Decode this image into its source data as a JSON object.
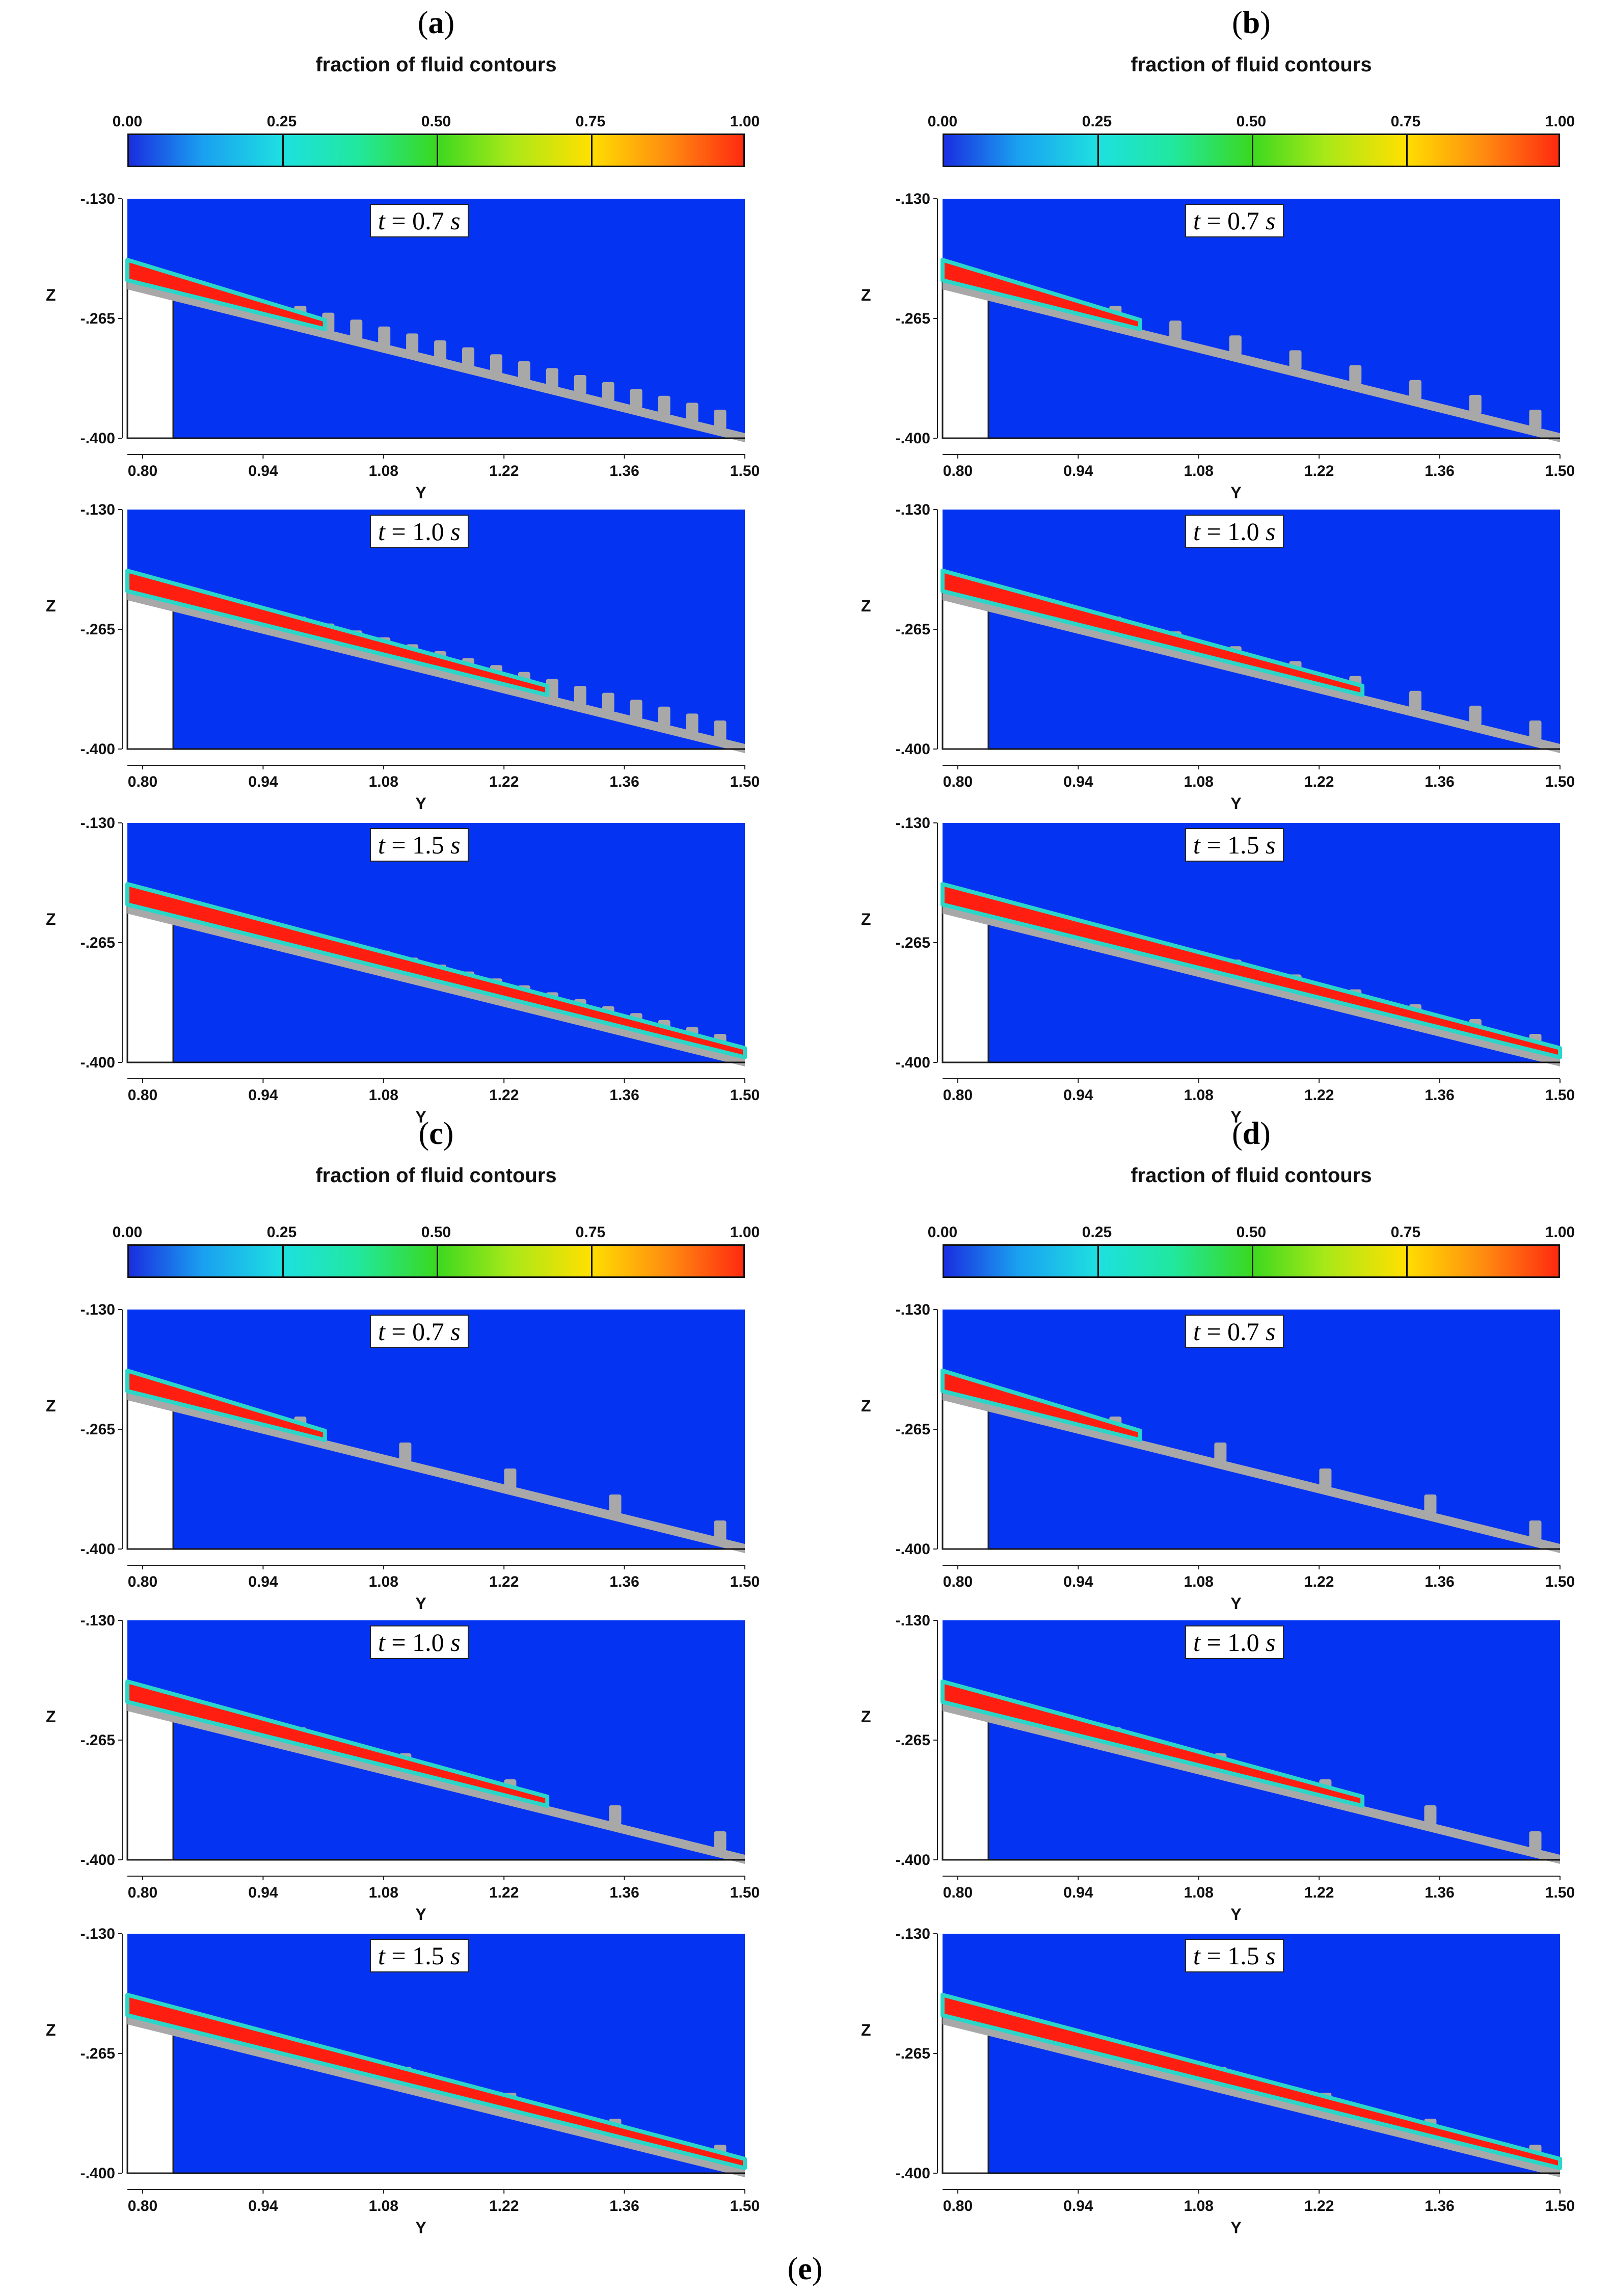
{
  "figure": {
    "caption_letter": "e",
    "colorbar": {
      "title": "fraction of fluid contours",
      "ticks": [
        "0.00",
        "0.25",
        "0.50",
        "0.75",
        "1.00"
      ]
    },
    "axes": {
      "z_label": "Z",
      "y_label": "Y",
      "z_ticks": [
        "-.130",
        "-.265",
        "-.400"
      ],
      "y_ticks": [
        "0.80",
        "0.94",
        "1.08",
        "1.22",
        "1.36",
        "1.50"
      ]
    },
    "time_prefix": "t = ",
    "time_unit": "s",
    "panels": [
      {
        "letter": "a",
        "times": [
          "0.7",
          "1.0",
          "1.5"
        ]
      },
      {
        "letter": "b",
        "times": [
          "0.7",
          "1.0",
          "1.5"
        ]
      },
      {
        "letter": "c",
        "times": [
          "0.7",
          "1.0",
          "1.5"
        ]
      },
      {
        "letter": "d",
        "times": [
          "0.7",
          "1.0",
          "1.5"
        ]
      }
    ]
  }
}
